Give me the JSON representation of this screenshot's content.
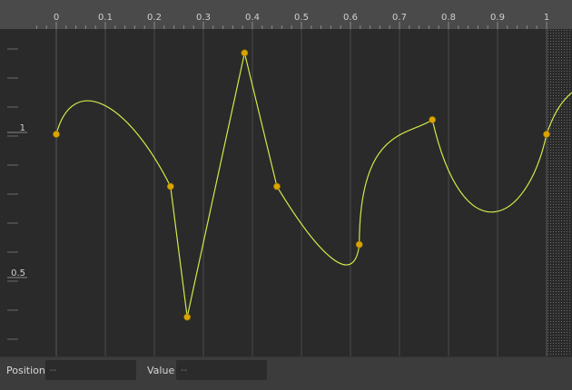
{
  "ruler": {
    "ticks": [
      {
        "label": "0",
        "value": 0
      },
      {
        "label": "0.1",
        "value": 0.1
      },
      {
        "label": "0.2",
        "value": 0.2
      },
      {
        "label": "0.3",
        "value": 0.3
      },
      {
        "label": "0.4",
        "value": 0.4
      },
      {
        "label": "0.5",
        "value": 0.5
      },
      {
        "label": "0.6",
        "value": 0.6
      },
      {
        "label": "0.7",
        "value": 0.7
      },
      {
        "label": "0.8",
        "value": 0.8
      },
      {
        "label": "0.9",
        "value": 0.9
      },
      {
        "label": "1",
        "value": 1.0
      }
    ]
  },
  "value_axis": {
    "labels": [
      {
        "label": "1",
        "value": 1.0
      },
      {
        "label": "0.5",
        "value": 0.5
      }
    ]
  },
  "curve": {
    "color": "#d4e84a",
    "key_color": "#d9a400",
    "keys": [
      {
        "pos": 0.0,
        "val": 1.0
      },
      {
        "pos": 0.233,
        "val": 0.82
      },
      {
        "pos": 0.267,
        "val": 0.37
      },
      {
        "pos": 0.384,
        "val": 1.28
      },
      {
        "pos": 0.45,
        "val": 0.82
      },
      {
        "pos": 0.618,
        "val": 0.62
      },
      {
        "pos": 0.767,
        "val": 1.05
      },
      {
        "pos": 1.0,
        "val": 1.0
      }
    ]
  },
  "fields": {
    "position_label": "Position",
    "position_placeholder": "--",
    "value_label": "Value",
    "value_placeholder": "--"
  }
}
